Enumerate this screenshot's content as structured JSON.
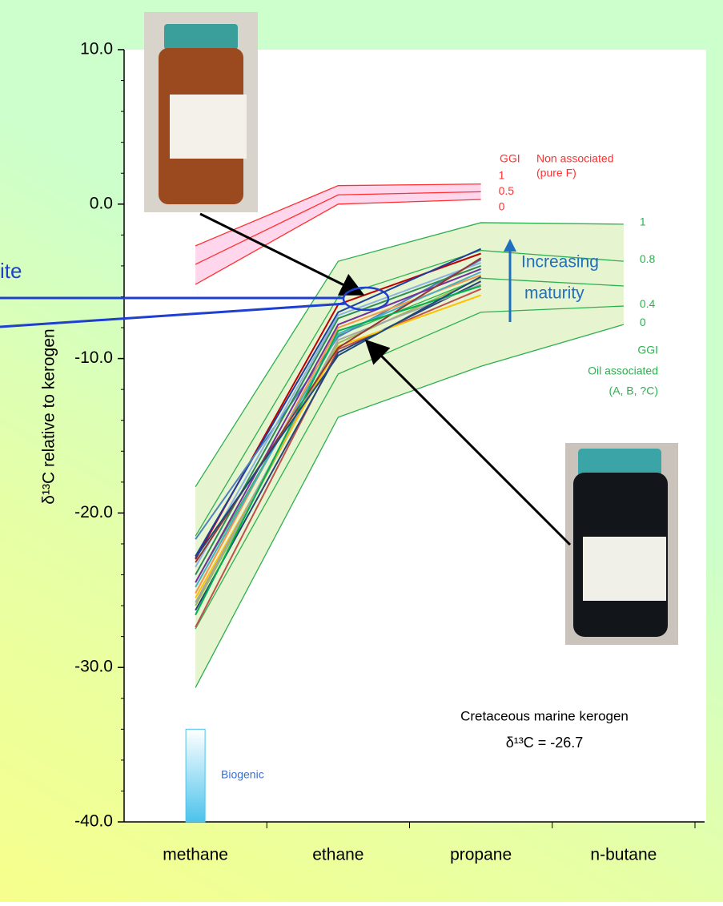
{
  "chart_data": {
    "type": "line",
    "categories": [
      "methane",
      "ethane",
      "propane",
      "n-butane"
    ],
    "y_label": "δ¹³C relative to kerogen",
    "ylim": [
      -40,
      10
    ],
    "yticks": [
      {
        "value": -40,
        "label": "-40.0"
      },
      {
        "value": -30,
        "label": "-30.0"
      },
      {
        "value": -20,
        "label": "-20.0"
      },
      {
        "value": -10,
        "label": "-10.0"
      },
      {
        "value": 0,
        "label": "0.0"
      },
      {
        "value": 10,
        "label": "10.0"
      }
    ],
    "series": [
      {
        "color": "#c00000",
        "values": [
          -23.0,
          -6.5,
          -3.2,
          null
        ]
      },
      {
        "color": "#1f3f9f",
        "values": [
          -22.8,
          -7.0,
          -2.9,
          null
        ]
      },
      {
        "color": "#4f81bd",
        "values": [
          -21.7,
          -8.6,
          -3.6,
          null
        ]
      },
      {
        "color": "#2e8b57",
        "values": [
          -24.0,
          -7.4,
          -4.0,
          null
        ]
      },
      {
        "color": "#f79646",
        "values": [
          -25.2,
          -8.0,
          -4.6,
          null
        ]
      },
      {
        "color": "#7030a0",
        "values": [
          -24.5,
          -7.8,
          -4.2,
          null
        ]
      },
      {
        "color": "#8db3e2",
        "values": [
          -23.5,
          -7.2,
          -3.8,
          null
        ]
      },
      {
        "color": "#9bbb59",
        "values": [
          -26.0,
          -9.0,
          -4.8,
          null
        ]
      },
      {
        "color": "#c0504d",
        "values": [
          -27.4,
          -9.4,
          -5.5,
          null
        ]
      },
      {
        "color": "#264478",
        "values": [
          -26.3,
          -9.6,
          -5.0,
          null
        ]
      },
      {
        "color": "#ffc000",
        "values": [
          -25.5,
          -9.2,
          -5.9,
          null
        ]
      },
      {
        "color": "#4bacc6",
        "values": [
          -24.8,
          -8.4,
          -4.4,
          null
        ]
      },
      {
        "color": "#a5a5a5",
        "values": [
          -25.8,
          -8.8,
          -5.2,
          null
        ]
      },
      {
        "color": "#943634",
        "values": [
          -23.2,
          -9.3,
          -3.5,
          null
        ]
      },
      {
        "color": "#00b050",
        "values": [
          -26.6,
          -8.2,
          -5.3,
          null
        ]
      },
      {
        "color": "#1f497d",
        "values": [
          -22.9,
          -9.8,
          -4.7,
          null
        ]
      }
    ],
    "reference_sets": [
      {
        "title": [
          "GGI",
          "Non associated",
          "(pure F)"
        ],
        "color": "#ff3030",
        "fill": "#ffd6ec",
        "series": [
          {
            "name": "1",
            "values": [
              -2.7,
              1.2,
              1.3,
              null
            ]
          },
          {
            "name": "0.5",
            "values": [
              -3.9,
              0.6,
              0.8,
              null
            ]
          },
          {
            "name": "0",
            "values": [
              -5.2,
              0.0,
              0.3,
              null
            ]
          }
        ]
      },
      {
        "title": [
          "GGI",
          "Oil associated",
          "(A, B, ?C)"
        ],
        "color": "#2eb050",
        "fill": "#e6f5cf",
        "series": [
          {
            "name": "1",
            "values": [
              -18.3,
              -3.7,
              -1.2,
              -1.3
            ]
          },
          {
            "name": "0.8",
            "values": [
              -21.5,
              -6.0,
              -3.0,
              -3.7
            ]
          },
          {
            "values": [
              -24.5,
              -8.5,
              -4.8,
              -5.3
            ]
          },
          {
            "name": "0.4",
            "values": [
              -27.5,
              -11.0,
              -7.0,
              -6.6
            ]
          },
          {
            "name": "0",
            "values": [
              -31.3,
              -13.8,
              -10.5,
              -7.8
            ]
          }
        ]
      }
    ],
    "biogenic": {
      "label": "Biogenic",
      "range": [
        -40,
        -34
      ]
    },
    "maturity_label": [
      "Increasing",
      "maturity"
    ],
    "kerogen_label": [
      "Cretaceous marine kerogen",
      "δ¹³C = -26.7"
    ],
    "cut_label": "ite"
  }
}
